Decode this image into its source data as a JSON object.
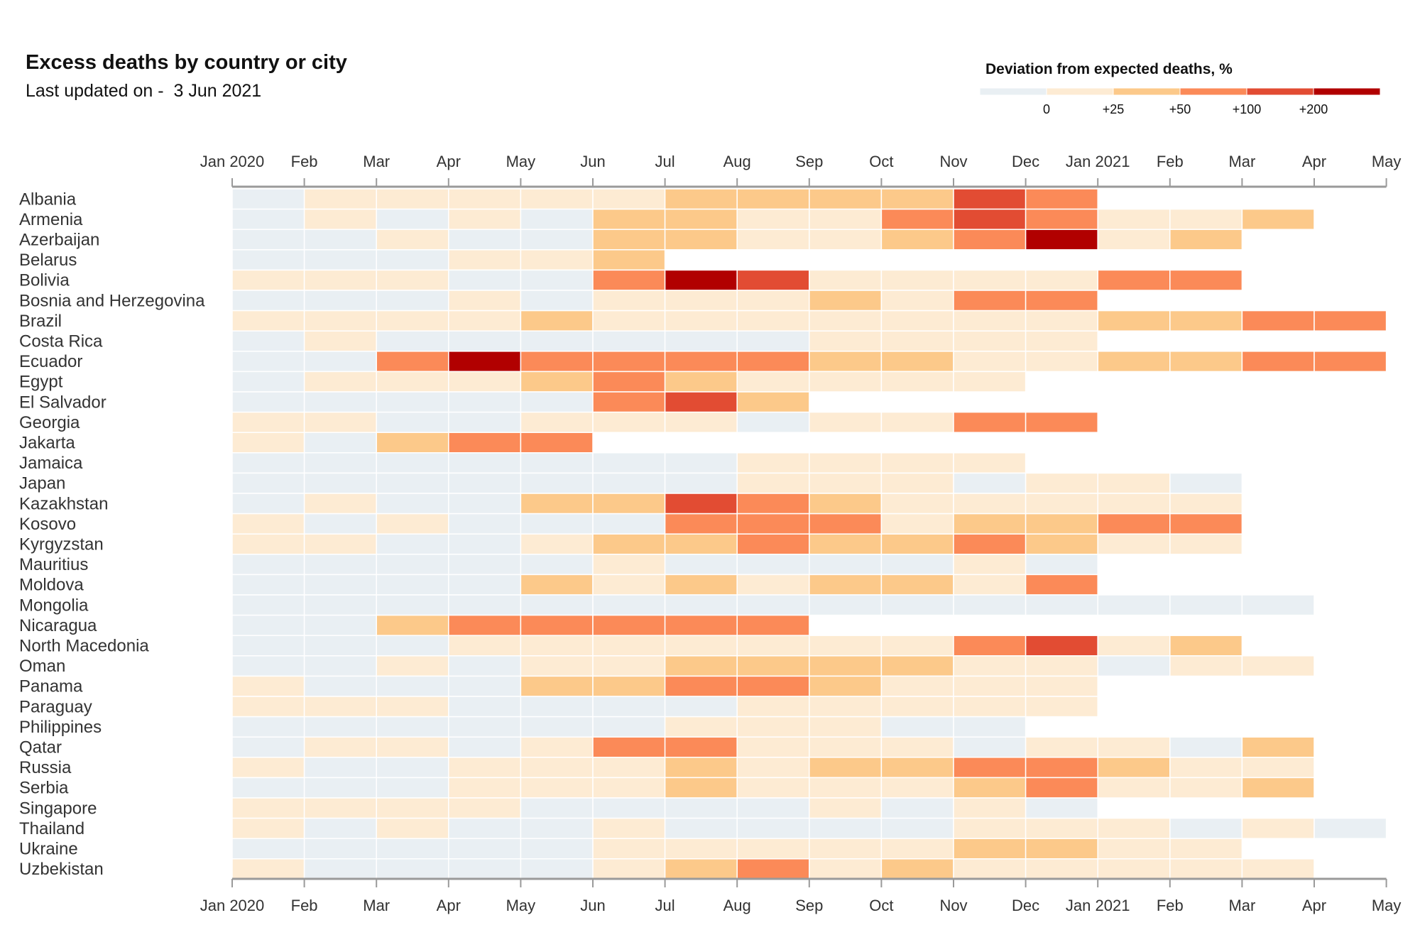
{
  "chart_data": {
    "type": "heatmap",
    "title": "Excess deaths by country or city",
    "subtitle": "Last updated on -  3 Jun 2021",
    "legend": {
      "title": "Deviation from expected deaths, %",
      "bins": [
        {
          "color": "#e9eff3",
          "label": "0"
        },
        {
          "color": "#fdebd3",
          "label": "+25"
        },
        {
          "color": "#fcc98a",
          "label": "+50"
        },
        {
          "color": "#fb8a58",
          "label": "+100"
        },
        {
          "color": "#e24c33",
          "label": "+200"
        },
        {
          "color": "#b10000",
          "label": ""
        }
      ]
    },
    "x_ticks": [
      "Jan 2020",
      "Feb",
      "Mar",
      "Apr",
      "May",
      "Jun",
      "Jul",
      "Aug",
      "Sep",
      "Oct",
      "Nov",
      "Dec",
      "Jan 2021",
      "Feb",
      "Mar",
      "Apr",
      "May"
    ],
    "level_key": "0 = below 0%, 1 = 0 to +25%, 2 = +25 to +50%, 3 = +50 to +100%, 4 = +100 to +200%, 5 = above +200%, null = no data",
    "rows": [
      {
        "name": "Albania",
        "levels": [
          0,
          1,
          1,
          1,
          1,
          1,
          2,
          2,
          2,
          2,
          4,
          3,
          null,
          null,
          null,
          null
        ]
      },
      {
        "name": "Armenia",
        "levels": [
          0,
          1,
          0,
          1,
          0,
          2,
          2,
          1,
          1,
          3,
          4,
          3,
          1,
          1,
          2,
          null
        ]
      },
      {
        "name": "Azerbaijan",
        "levels": [
          0,
          0,
          1,
          0,
          0,
          2,
          2,
          1,
          1,
          2,
          3,
          5,
          1,
          2,
          null,
          null
        ]
      },
      {
        "name": "Belarus",
        "levels": [
          0,
          0,
          0,
          1,
          1,
          2,
          null,
          null,
          null,
          null,
          null,
          null,
          null,
          null,
          null,
          null
        ]
      },
      {
        "name": "Bolivia",
        "levels": [
          1,
          1,
          1,
          0,
          0,
          3,
          5,
          4,
          1,
          1,
          1,
          1,
          3,
          3,
          null,
          null
        ]
      },
      {
        "name": "Bosnia and Herzegovina",
        "levels": [
          0,
          0,
          0,
          1,
          0,
          1,
          1,
          1,
          2,
          1,
          3,
          3,
          null,
          null,
          null,
          null
        ]
      },
      {
        "name": "Brazil",
        "levels": [
          1,
          1,
          1,
          1,
          2,
          1,
          1,
          1,
          1,
          1,
          1,
          1,
          2,
          2,
          3,
          3
        ]
      },
      {
        "name": "Costa Rica",
        "levels": [
          0,
          1,
          0,
          0,
          0,
          0,
          0,
          0,
          1,
          1,
          1,
          1,
          null,
          null,
          null,
          null
        ]
      },
      {
        "name": "Ecuador",
        "levels": [
          0,
          0,
          3,
          5,
          3,
          3,
          3,
          3,
          2,
          2,
          1,
          1,
          2,
          2,
          3,
          3
        ]
      },
      {
        "name": "Egypt",
        "levels": [
          0,
          1,
          1,
          1,
          2,
          3,
          2,
          1,
          1,
          1,
          1,
          null,
          null,
          null,
          null,
          null
        ]
      },
      {
        "name": "El Salvador",
        "levels": [
          0,
          0,
          0,
          0,
          0,
          3,
          4,
          2,
          null,
          null,
          null,
          null,
          null,
          null,
          null,
          null
        ]
      },
      {
        "name": "Georgia",
        "levels": [
          1,
          1,
          0,
          0,
          1,
          1,
          1,
          0,
          1,
          1,
          3,
          3,
          null,
          null,
          null,
          null
        ]
      },
      {
        "name": "Jakarta",
        "levels": [
          1,
          0,
          2,
          3,
          3,
          null,
          null,
          null,
          null,
          null,
          null,
          null,
          null,
          null,
          null,
          null
        ]
      },
      {
        "name": "Jamaica",
        "levels": [
          0,
          0,
          0,
          0,
          0,
          0,
          0,
          1,
          1,
          1,
          1,
          null,
          null,
          null,
          null,
          null
        ]
      },
      {
        "name": "Japan",
        "levels": [
          0,
          0,
          0,
          0,
          0,
          0,
          0,
          1,
          1,
          1,
          0,
          1,
          1,
          0,
          null,
          null
        ]
      },
      {
        "name": "Kazakhstan",
        "levels": [
          0,
          1,
          0,
          0,
          2,
          2,
          4,
          3,
          2,
          1,
          1,
          1,
          1,
          1,
          null,
          null
        ]
      },
      {
        "name": "Kosovo",
        "levels": [
          1,
          0,
          1,
          0,
          0,
          0,
          3,
          3,
          3,
          1,
          2,
          2,
          3,
          3,
          null,
          null
        ]
      },
      {
        "name": "Kyrgyzstan",
        "levels": [
          1,
          1,
          0,
          0,
          1,
          2,
          2,
          3,
          2,
          2,
          3,
          2,
          1,
          1,
          null,
          null
        ]
      },
      {
        "name": "Mauritius",
        "levels": [
          0,
          0,
          0,
          0,
          0,
          1,
          0,
          0,
          0,
          0,
          1,
          0,
          null,
          null,
          null,
          null
        ]
      },
      {
        "name": "Moldova",
        "levels": [
          0,
          0,
          0,
          0,
          2,
          1,
          2,
          1,
          2,
          2,
          1,
          3,
          null,
          null,
          null,
          null
        ]
      },
      {
        "name": "Mongolia",
        "levels": [
          0,
          0,
          0,
          0,
          0,
          0,
          0,
          0,
          0,
          0,
          0,
          0,
          0,
          0,
          0,
          null
        ]
      },
      {
        "name": "Nicaragua",
        "levels": [
          0,
          0,
          2,
          3,
          3,
          3,
          3,
          3,
          null,
          null,
          null,
          null,
          null,
          null,
          null,
          null
        ]
      },
      {
        "name": "North Macedonia",
        "levels": [
          0,
          0,
          0,
          1,
          1,
          1,
          1,
          1,
          1,
          1,
          3,
          4,
          1,
          2,
          null,
          null
        ]
      },
      {
        "name": "Oman",
        "levels": [
          0,
          0,
          1,
          0,
          1,
          1,
          2,
          2,
          2,
          2,
          1,
          1,
          0,
          1,
          1,
          null
        ]
      },
      {
        "name": "Panama",
        "levels": [
          1,
          0,
          0,
          0,
          2,
          2,
          3,
          3,
          2,
          1,
          1,
          1,
          null,
          null,
          null,
          null
        ]
      },
      {
        "name": "Paraguay",
        "levels": [
          1,
          1,
          1,
          0,
          0,
          0,
          0,
          1,
          1,
          1,
          1,
          1,
          null,
          null,
          null,
          null
        ]
      },
      {
        "name": "Philippines",
        "levels": [
          0,
          0,
          0,
          0,
          0,
          0,
          1,
          1,
          1,
          0,
          0,
          null,
          null,
          null,
          null,
          null
        ]
      },
      {
        "name": "Qatar",
        "levels": [
          0,
          1,
          1,
          0,
          1,
          3,
          3,
          1,
          1,
          1,
          0,
          1,
          1,
          0,
          2,
          null
        ]
      },
      {
        "name": "Russia",
        "levels": [
          1,
          0,
          0,
          1,
          1,
          1,
          2,
          1,
          2,
          2,
          3,
          3,
          2,
          1,
          1,
          null
        ]
      },
      {
        "name": "Serbia",
        "levels": [
          0,
          0,
          0,
          1,
          1,
          1,
          2,
          1,
          1,
          1,
          2,
          3,
          1,
          1,
          2,
          null
        ]
      },
      {
        "name": "Singapore",
        "levels": [
          1,
          1,
          1,
          1,
          0,
          0,
          0,
          0,
          1,
          0,
          1,
          0,
          null,
          null,
          null,
          null
        ]
      },
      {
        "name": "Thailand",
        "levels": [
          1,
          0,
          1,
          0,
          0,
          1,
          0,
          0,
          0,
          0,
          1,
          1,
          1,
          0,
          1,
          0
        ]
      },
      {
        "name": "Ukraine",
        "levels": [
          0,
          0,
          0,
          0,
          0,
          1,
          1,
          1,
          1,
          1,
          2,
          2,
          1,
          1,
          null,
          null
        ]
      },
      {
        "name": "Uzbekistan",
        "levels": [
          1,
          0,
          0,
          0,
          0,
          1,
          2,
          3,
          1,
          2,
          1,
          1,
          1,
          1,
          1,
          null
        ]
      }
    ]
  }
}
